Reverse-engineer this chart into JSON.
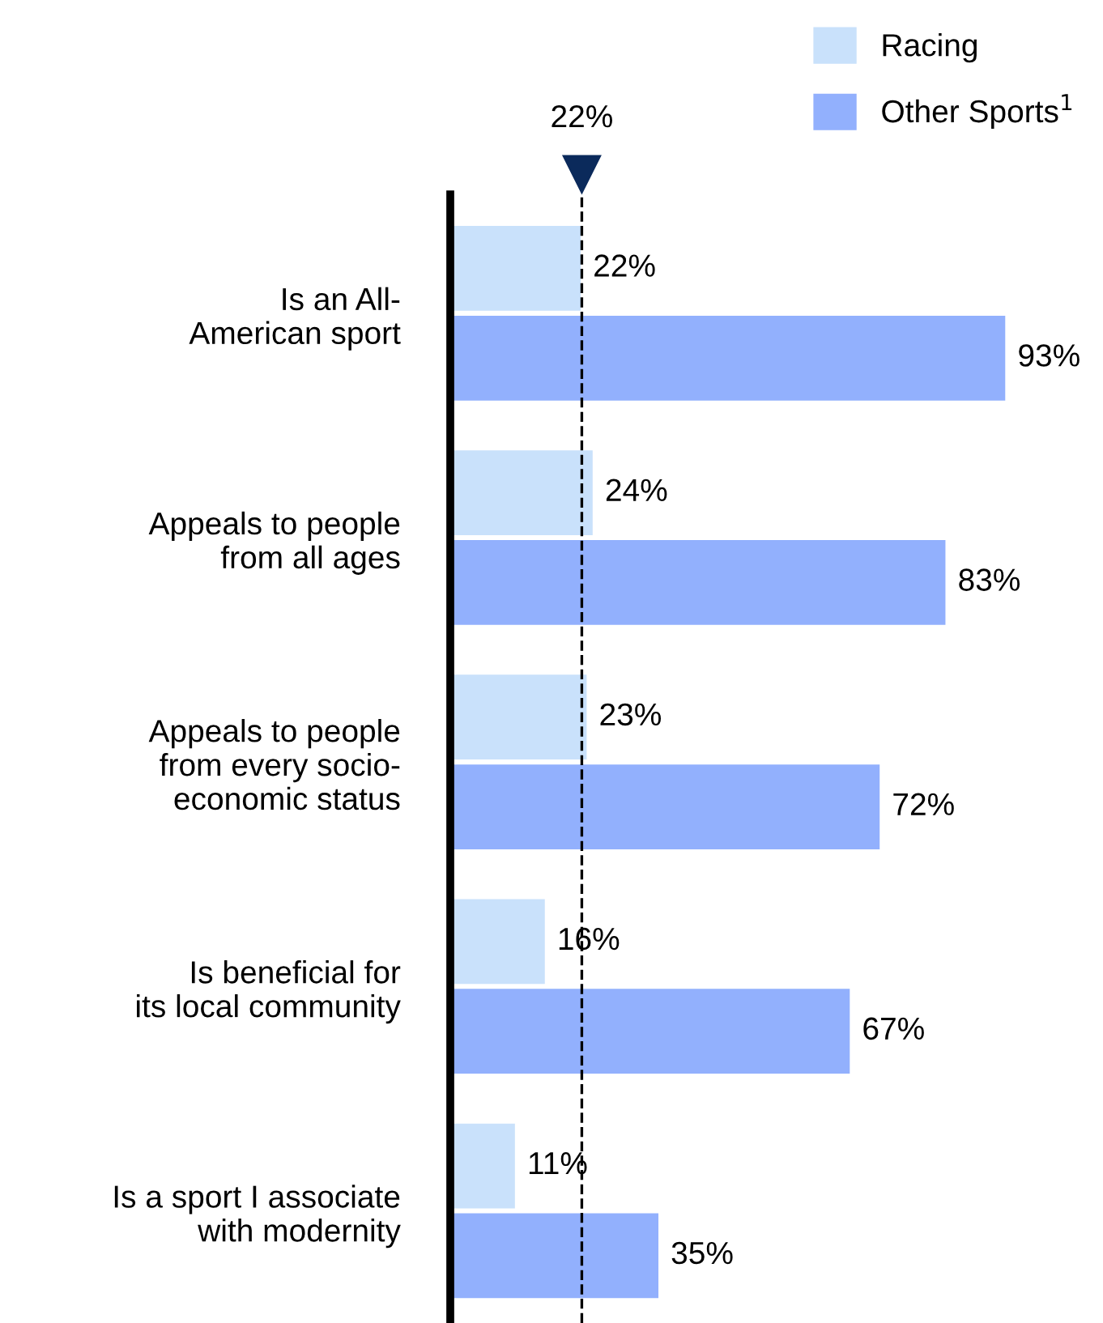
{
  "chart_data": {
    "type": "bar",
    "orientation": "horizontal",
    "categories": [
      "Is an All-\nAmerican sport",
      "Appeals to people\nfrom all ages",
      "Appeals to people\nfrom every socio-\neconomic status",
      "Is beneficial for\nits local community",
      "Is a sport I associate\nwith modernity"
    ],
    "series": [
      {
        "name": "Racing",
        "color": "#c9e1fb",
        "values": [
          22,
          24,
          23,
          16,
          11
        ],
        "value_labels": [
          "22%",
          "24%",
          "23%",
          "16%",
          "11%"
        ]
      },
      {
        "name": "Other Sports$^{1}$",
        "color": "#92b0fd",
        "values": [
          93,
          83,
          72,
          67,
          35
        ],
        "value_labels": [
          "93%",
          "83%",
          "72%",
          "67%",
          "35%"
        ]
      }
    ],
    "tick_labels": "y",
    "legend": "top right",
    "ref_lines": [
      {
        "axis": "x",
        "value": 22,
        "label": "22%",
        "color": "#000000",
        "line_style": "dashed"
      }
    ]
  }
}
